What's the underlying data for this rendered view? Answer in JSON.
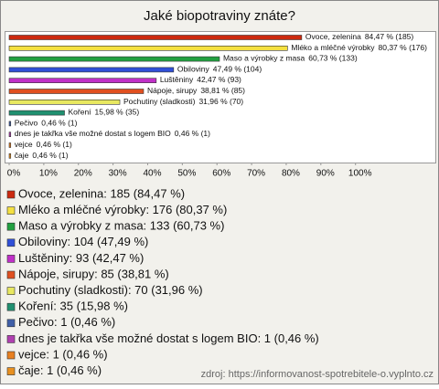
{
  "chart_data": {
    "type": "bar",
    "orientation": "horizontal",
    "title": "Jaké biopotraviny znáte?",
    "categories": [
      "Ovoce, zelenina",
      "Mléko a mléčné výrobky",
      "Maso a výrobky z masa",
      "Obiloviny",
      "Luštěniny",
      "Nápoje, sirupy",
      "Pochutiny (sladkosti)",
      "Koření",
      "Pečivo",
      "dnes je takřka vše možné dostat s logem BIO",
      "vejce",
      "čaje"
    ],
    "values": [
      84.47,
      80.37,
      60.73,
      47.49,
      42.47,
      38.81,
      31.96,
      15.98,
      0.46,
      0.46,
      0.46,
      0.46
    ],
    "value_labels": [
      "84,47 % (185)",
      "80,37 % (176)",
      "60,73 % (133)",
      "47,49 % (104)",
      "42,47 % (93)",
      "38,81 % (85)",
      "31,96 % (70)",
      "15,98 % (35)",
      "0,46 % (1)",
      "0,46 % (1)",
      "0,46 % (1)",
      "0,46 % (1)"
    ],
    "legend_labels": [
      "Ovoce, zelenina: 185 (84,47 %)",
      "Mléko a mléčné výrobky: 176 (80,37 %)",
      "Maso a výrobky z masa: 133 (60,73 %)",
      "Obiloviny: 104 (47,49 %)",
      "Luštěniny: 93 (42,47 %)",
      "Nápoje, sirupy: 85 (38,81 %)",
      "Pochutiny (sladkosti): 70 (31,96 %)",
      "Koření: 35 (15,98 %)",
      "Pečivo: 1 (0,46 %)",
      "dnes je takřka vše možné dostat s logem BIO: 1 (0,46 %)",
      "vejce: 1 (0,46 %)",
      "čaje: 1 (0,46 %)"
    ],
    "colors": [
      "#cc2a10",
      "#f4e040",
      "#22a040",
      "#3050d8",
      "#c030c8",
      "#e05020",
      "#e8e860",
      "#209070",
      "#4060a8",
      "#b040b0",
      "#e88020",
      "#e89020"
    ],
    "xlim": [
      0,
      122
    ],
    "xticks": [
      {
        "value": 0,
        "label": "0%"
      },
      {
        "value": 10,
        "label": "10%"
      },
      {
        "value": 20,
        "label": "20%"
      },
      {
        "value": 30,
        "label": "30%"
      },
      {
        "value": 40,
        "label": "40%"
      },
      {
        "value": 50,
        "label": "50%"
      },
      {
        "value": 60,
        "label": "60%"
      },
      {
        "value": 70,
        "label": "70%"
      },
      {
        "value": 80,
        "label": "80%"
      },
      {
        "value": 90,
        "label": "90%"
      },
      {
        "value": 100,
        "label": "100%"
      }
    ],
    "source": "zdroj: https://informovanost-spotrebitele-o.vyplnto.cz"
  }
}
